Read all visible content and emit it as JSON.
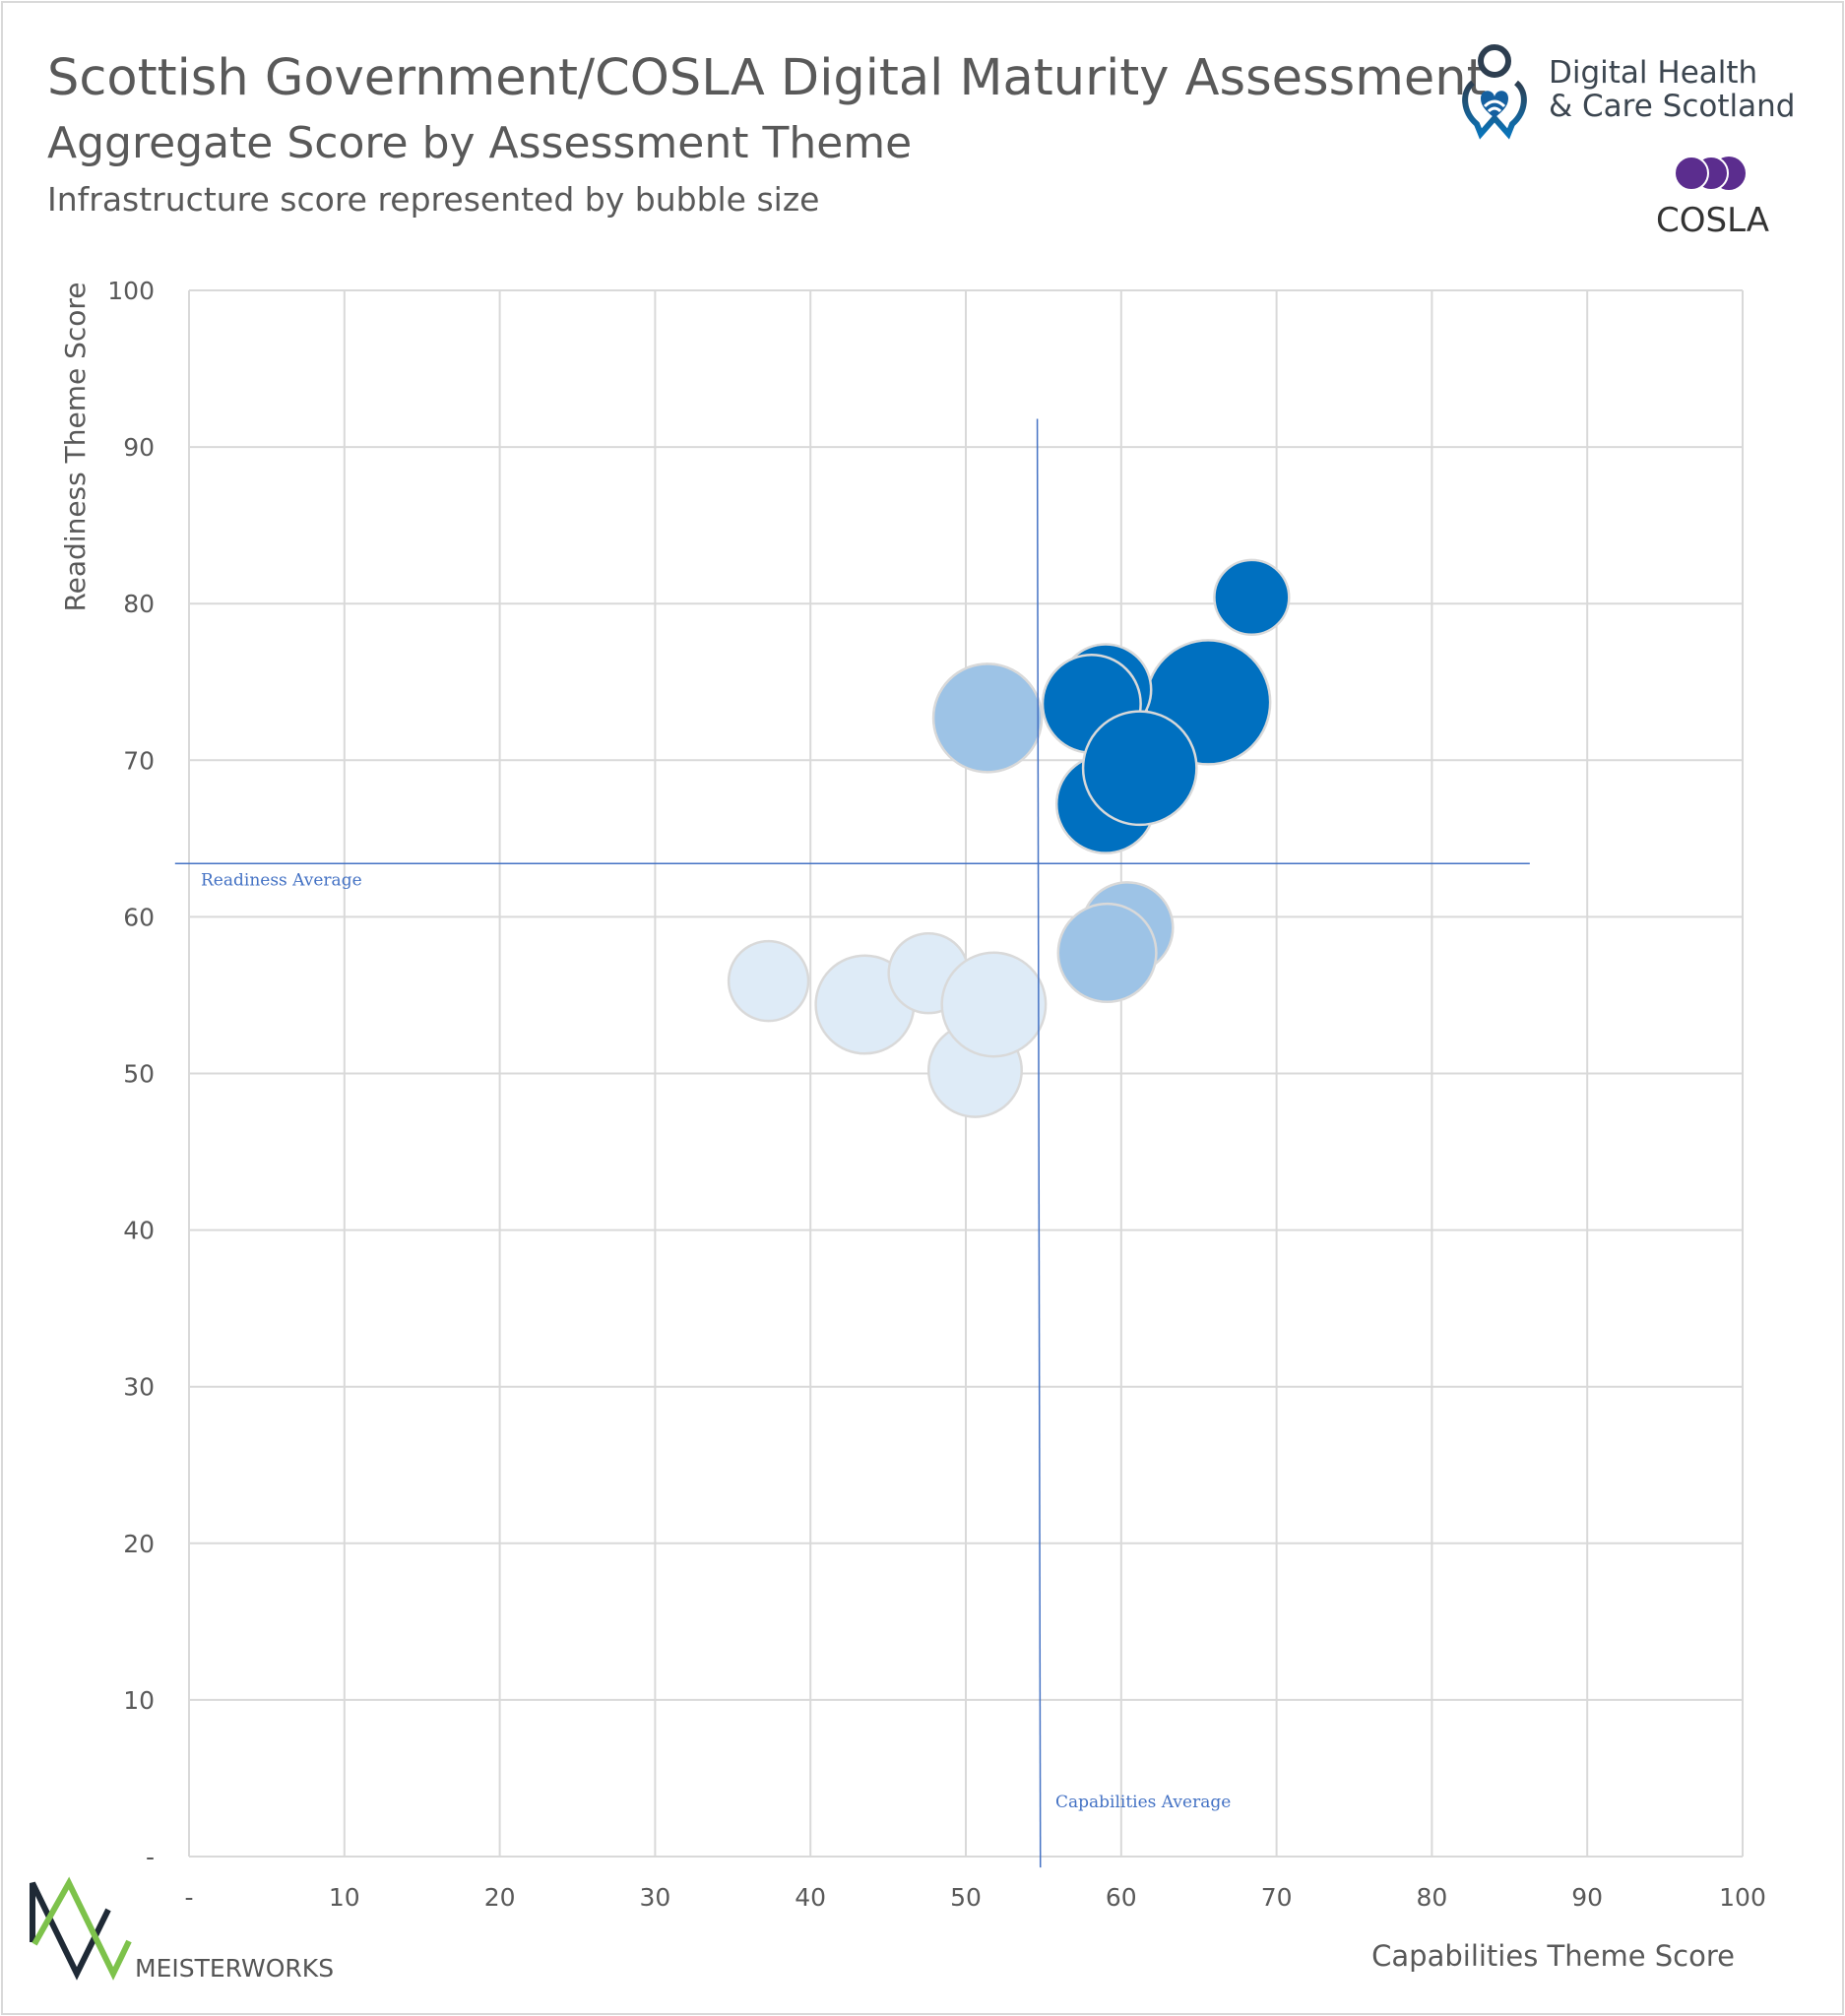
{
  "header": {
    "title": "Scottish Government/COSLA Digital Maturity Assessment",
    "subtitle": "Aggregate Score by Assessment Theme",
    "note": "Infrastructure score represented by bubble size"
  },
  "logos": {
    "dhcs": {
      "line1": "Digital Health",
      "line2": "& Care Scotland"
    },
    "cosla": "COSLA",
    "meisterworks": "MEISTERWORKS"
  },
  "chart_data": {
    "type": "bubble",
    "title": "Aggregate Score by Assessment Theme",
    "xlabel": "Capabilities Theme Score",
    "ylabel": "Readiness Theme Score",
    "size_label": "Infrastructure score",
    "xlim": [
      0,
      100
    ],
    "ylim": [
      0,
      100
    ],
    "xticks": [
      "-",
      "10",
      "20",
      "30",
      "40",
      "50",
      "60",
      "70",
      "80",
      "90",
      "100"
    ],
    "yticks": [
      "-",
      "10",
      "20",
      "30",
      "40",
      "50",
      "60",
      "70",
      "80",
      "90",
      "100"
    ],
    "grid": true,
    "colors": {
      "high": "#0070C0",
      "medium": "#9DC3E6",
      "low": "#DEEBF7",
      "outline": "#D9D9D9",
      "average_line": "#4472C4"
    },
    "points": [
      {
        "x": 37.3,
        "y": 55.9,
        "size": 33,
        "group": "low"
      },
      {
        "x": 43.5,
        "y": 54.4,
        "size": 50,
        "group": "low"
      },
      {
        "x": 50.6,
        "y": 50.2,
        "size": 45,
        "group": "low"
      },
      {
        "x": 47.6,
        "y": 56.4,
        "size": 33,
        "group": "low"
      },
      {
        "x": 51.8,
        "y": 54.4,
        "size": 56,
        "group": "low"
      },
      {
        "x": 51.4,
        "y": 72.7,
        "size": 61,
        "group": "medium"
      },
      {
        "x": 60.4,
        "y": 59.3,
        "size": 43,
        "group": "medium"
      },
      {
        "x": 59.1,
        "y": 57.7,
        "size": 50,
        "group": "medium"
      },
      {
        "x": 68.4,
        "y": 80.4,
        "size": 29,
        "group": "high"
      },
      {
        "x": 65.6,
        "y": 73.7,
        "size": 80,
        "group": "high"
      },
      {
        "x": 59.0,
        "y": 74.5,
        "size": 43,
        "group": "high"
      },
      {
        "x": 58.1,
        "y": 73.6,
        "size": 50,
        "group": "high"
      },
      {
        "x": 59.0,
        "y": 67.2,
        "size": 50,
        "group": "high"
      },
      {
        "x": 61.2,
        "y": 69.5,
        "size": 67,
        "group": "high"
      }
    ],
    "reference_lines": {
      "readiness_average": {
        "label": "Readiness Average",
        "y": 63.4
      },
      "capabilities_average": {
        "label": "Capabilities Average",
        "x": 54.8
      }
    }
  }
}
